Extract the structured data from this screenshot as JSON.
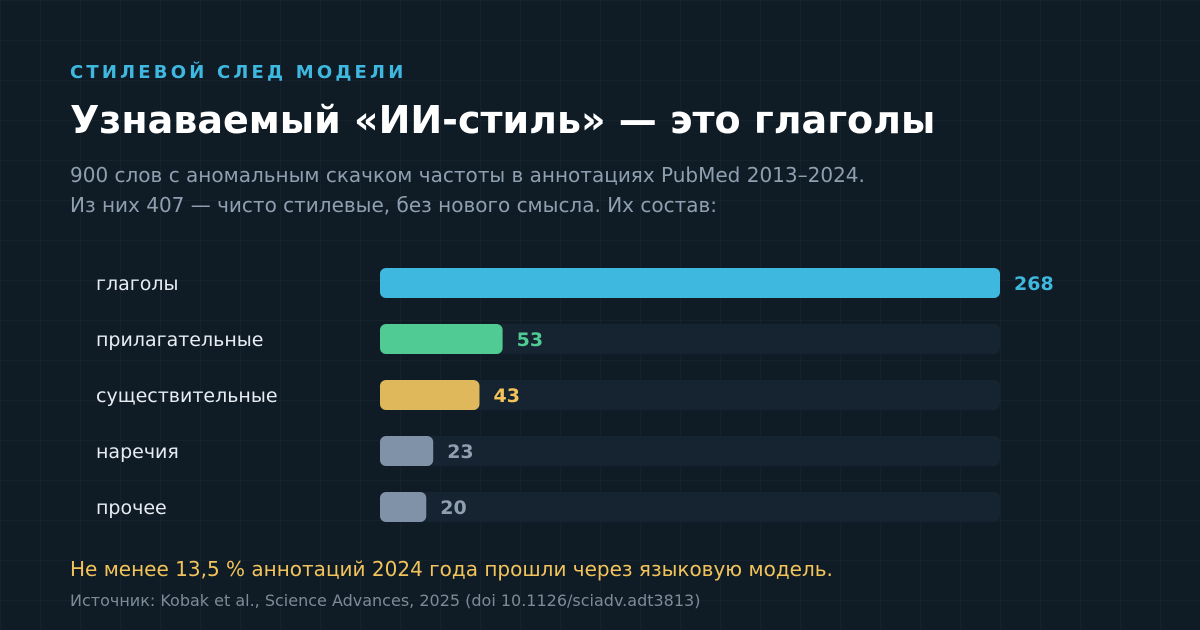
{
  "header": {
    "kicker": "СТИЛЕВОЙ СЛЕД МОДЕЛИ",
    "title": "Узнаваемый «ИИ-стиль» — это глаголы",
    "subtitle_line1": "900 слов с аномальным скачком частоты в аннотациях PubMed 2013–2024.",
    "subtitle_line2": "Из них 407 — чисто стилевые, без нового смысла. Их состав:"
  },
  "chart_data": {
    "type": "bar",
    "orientation": "horizontal",
    "categories": [
      "глаголы",
      "прилагательные",
      "существительные",
      "наречия",
      "прочее"
    ],
    "values": [
      268,
      53,
      43,
      23,
      20
    ],
    "colors": [
      "#3fb8e0",
      "#4fcb93",
      "#e0b85c",
      "#7f92a8",
      "#7f92a8"
    ],
    "label_colors": [
      "#3fb8e0",
      "#4fcb93",
      "#f2c35a",
      "#8f9faf",
      "#8f9faf"
    ],
    "track_color": "#162331",
    "xlim": [
      0,
      268
    ],
    "grid": false,
    "legend": "none"
  },
  "footer": {
    "note": "Не менее 13,5 % аннотаций 2024 года прошли через языковую модель.",
    "source": "Источник: Kobak et al., Science Advances, 2025 (doi 10.1126/sciadv.adt3813)"
  }
}
